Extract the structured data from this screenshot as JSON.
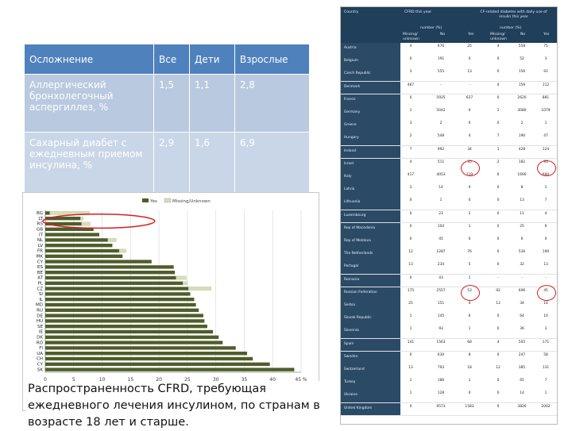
{
  "table": {
    "headers": [
      "Осложнение",
      "Все",
      "Дети",
      "Взрослые"
    ],
    "rows": [
      [
        "Аллергический бронхолегочный аспергиллез, %",
        "1,5",
        "1,1",
        "2,8"
      ],
      [
        "Сахарный диабет с ежедневным приемом инсулина, %",
        "2,9",
        "1,6",
        "6,9"
      ]
    ]
  },
  "chart_data": {
    "type": "bar",
    "legend": [
      "Yes",
      "Missing/Unknown"
    ],
    "categories": [
      "BG",
      "LT",
      "RS",
      "GB",
      "IT",
      "NL",
      "LV",
      "FR",
      "MK",
      "CY",
      "ES",
      "BE",
      "AT",
      "PL",
      "CZ",
      "SI",
      "IL",
      "MD",
      "RU",
      "DE",
      "HU",
      "SE",
      "IE",
      "DK",
      "RO",
      "FI",
      "UA",
      "CH",
      "CY",
      "SK"
    ],
    "series": [
      {
        "name": "Yes",
        "values": [
          0.8,
          6.2,
          6.4,
          8.5,
          9.5,
          11.0,
          11.8,
          13.0,
          13.6,
          18.7,
          22.6,
          22.8,
          23.0,
          24.2,
          25.2,
          25.5,
          26.2,
          26.5,
          27.0,
          27.8,
          28.0,
          28.5,
          29.5,
          30.5,
          31.2,
          33.5,
          35.5,
          36.5,
          39.5,
          43.8
        ]
      },
      {
        "name": "Missing/Unknown",
        "values": [
          7.0,
          0.5,
          1.5,
          0,
          0,
          1.5,
          0,
          1.2,
          0,
          0,
          0,
          0,
          1.8,
          0.8,
          4.0,
          0,
          0,
          0,
          0,
          0,
          0,
          0,
          0,
          0,
          0,
          0,
          0,
          0,
          0,
          0
        ]
      }
    ],
    "xlim": [
      0,
      45
    ],
    "xticks": [
      "0",
      "5",
      "10",
      "15",
      "20",
      "25",
      "30",
      "35",
      "40",
      "45 %"
    ],
    "colors": {
      "yes": "#4e5d2a",
      "missing": "#d8dcb8",
      "marker": "#d42020"
    },
    "highlighted": [
      "LT",
      "RS"
    ]
  },
  "caption": "Распространенность CFRD, требующая ежедневного лечения инсулином, по странам в возрасте 18 лет и старше.",
  "image_table": {
    "header": {
      "country": "Country",
      "group1": "CFRD this year",
      "group1_sub": "number (%)",
      "group2": "CF-related diabetes with daily use of insulin this year",
      "group2_sub": "number (%)",
      "cols": [
        "Missing/ unknown",
        "No",
        "Yes",
        "Missing/ unknown",
        "No",
        "Yes"
      ]
    },
    "rows": [
      {
        "country": "Austria",
        "vals": [
          "4",
          "676",
          "25",
          "4",
          "558",
          "75"
        ]
      },
      {
        "country": "Belgium",
        "vals": [
          "0",
          "191",
          "0",
          "0",
          "52",
          "3"
        ]
      },
      {
        "country": "Czech Republic",
        "vals": [
          "3",
          "555",
          "13",
          "0",
          "156",
          "91"
        ]
      },
      {
        "country": "Denmark",
        "vals": [
          "467",
          "-",
          "-",
          "0",
          "159",
          "112"
        ]
      },
      {
        "country": "France",
        "vals": [
          "0",
          "5925",
          "627",
          "0",
          "2620",
          "881"
        ]
      },
      {
        "country": "Germany",
        "vals": [
          "1",
          "5042",
          "0",
          "1",
          "3080",
          "1079"
        ]
      },
      {
        "country": "Greece",
        "vals": [
          "3",
          "2",
          "0",
          "0",
          "2",
          "1"
        ]
      },
      {
        "country": "Hungary",
        "vals": [
          "2",
          "548",
          "4",
          "7",
          "190",
          "47"
        ]
      },
      {
        "country": "Ireland",
        "vals": [
          "7",
          "992",
          "34",
          "1",
          "428",
          "124"
        ]
      },
      {
        "country": "Israel",
        "vals": [
          "4",
          "511",
          "35",
          "2",
          "182",
          "93"
        ]
      },
      {
        "country": "Italy",
        "vals": [
          "417",
          "4053",
          "119",
          "6",
          "1690",
          "660"
        ]
      },
      {
        "country": "Latvia",
        "vals": [
          "3",
          "14",
          "0",
          "0",
          "8",
          "1"
        ]
      },
      {
        "country": "Lithuania",
        "vals": [
          "0",
          "1",
          "0",
          "0",
          "13",
          "7"
        ]
      },
      {
        "country": "Luxembourg",
        "vals": [
          "0",
          "23",
          "2",
          "0",
          "11",
          "4"
        ]
      },
      {
        "country": "Rep of Macedonia",
        "vals": [
          "0",
          "104",
          "1",
          "0",
          "25",
          "6"
        ]
      },
      {
        "country": "Rep of Moldova",
        "vals": [
          "0",
          "45",
          "0",
          "0",
          "6",
          "0"
        ]
      },
      {
        "country": "The Netherlands",
        "vals": [
          "12",
          "1287",
          "76",
          "0",
          "536",
          "190"
        ]
      },
      {
        "country": "Portugal",
        "vals": [
          "13",
          "234",
          "5",
          "0",
          "32",
          "13"
        ]
      },
      {
        "country": "Romania",
        "vals": [
          "0",
          "43",
          "1",
          "-",
          "-",
          "-"
        ]
      },
      {
        "country": "Russian Federation",
        "vals": [
          "175",
          "2557",
          "53",
          "92",
          "696",
          "45"
        ]
      },
      {
        "country": "Serbia",
        "vals": [
          "25",
          "151",
          "0",
          "13",
          "34",
          "14"
        ]
      },
      {
        "country": "Slovak Republic",
        "vals": [
          "1",
          "145",
          "6",
          "0",
          "64",
          "10"
        ]
      },
      {
        "country": "Slovenia",
        "vals": [
          "1",
          "93",
          "1",
          "0",
          "36",
          "3"
        ]
      },
      {
        "country": "Spain",
        "vals": [
          "141",
          "1563",
          "68",
          "4",
          "505",
          "171"
        ]
      },
      {
        "country": "Sweden",
        "vals": [
          "0",
          "630",
          "8",
          "0",
          "247",
          "58"
        ]
      },
      {
        "country": "Switzerland",
        "vals": [
          "13",
          "793",
          "18",
          "12",
          "385",
          "131"
        ]
      },
      {
        "country": "Turkey",
        "vals": [
          "1",
          "186",
          "1",
          "0",
          "65",
          "7"
        ]
      },
      {
        "country": "Ukraine",
        "vals": [
          "1",
          "128",
          "0",
          "0",
          "14",
          "1"
        ]
      },
      {
        "country": "United Kingdom",
        "vals": [
          "0",
          "9573",
          "1583",
          "0",
          "3826",
          "2002"
        ]
      }
    ]
  }
}
